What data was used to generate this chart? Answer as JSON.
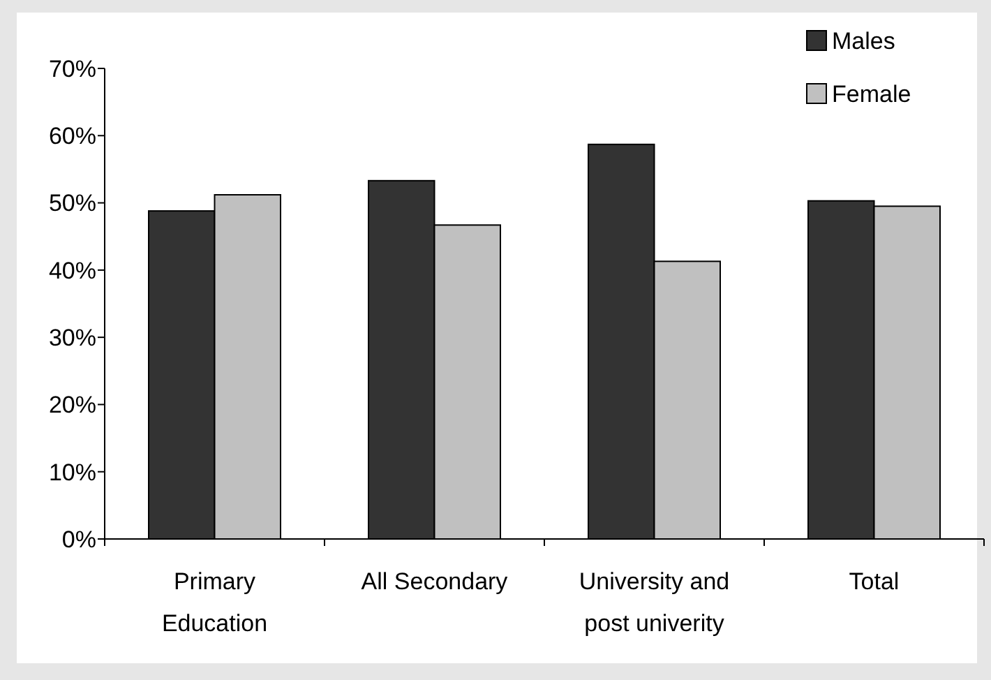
{
  "chart_data": {
    "type": "bar",
    "categories": [
      "Primary Education",
      "All Secondary",
      "University and post univerity",
      "Total"
    ],
    "series": [
      {
        "name": "Males",
        "color": "#333333",
        "values": [
          48.8,
          53.3,
          58.7,
          50.3
        ]
      },
      {
        "name": "Female",
        "color": "#c0c0c0",
        "values": [
          51.2,
          46.7,
          41.3,
          49.5
        ]
      }
    ],
    "ylim": [
      0,
      70
    ],
    "yticks": [
      {
        "value": 0,
        "label": "0%"
      },
      {
        "value": 10,
        "label": "10%"
      },
      {
        "value": 20,
        "label": "20%"
      },
      {
        "value": 30,
        "label": "30%"
      },
      {
        "value": 40,
        "label": "40%"
      },
      {
        "value": 50,
        "label": "50%"
      },
      {
        "value": 60,
        "label": "60%"
      },
      {
        "value": 70,
        "label": "70%"
      }
    ],
    "grid": false,
    "legend": "top right"
  }
}
